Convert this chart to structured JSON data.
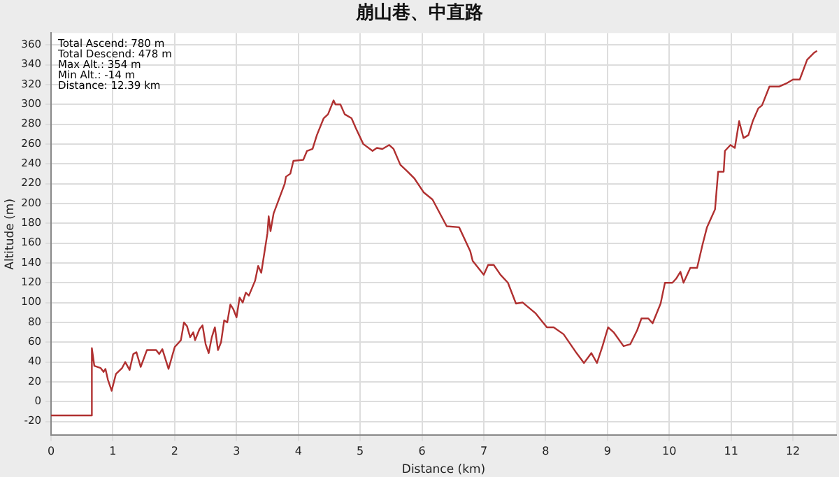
{
  "chart_data": {
    "type": "line",
    "title": "崩山巷、中直路",
    "xlabel": "Distance (km)",
    "ylabel": "Altitude (m)",
    "annotations": [
      "Total Ascend: 780 m",
      "Total Descend: 478 m",
      "Max Alt.: 354 m",
      "Min Alt.: -14 m",
      "Distance: 12.39 km"
    ],
    "xlim": [
      0,
      12.7
    ],
    "xticks": [
      0,
      1,
      2,
      3,
      4,
      5,
      6,
      7,
      8,
      9,
      10,
      11,
      12
    ],
    "ylim": [
      -34,
      372
    ],
    "yticks": [
      -20,
      0,
      20,
      40,
      60,
      80,
      100,
      120,
      140,
      160,
      180,
      200,
      220,
      240,
      260,
      280,
      300,
      320,
      340,
      360
    ],
    "grid": true,
    "marker": "none",
    "line_style": "solid",
    "series": [
      {
        "color": "#b03030",
        "x": [
          0,
          0.65,
          0.66,
          0.7,
          0.8,
          0.85,
          0.88,
          0.92,
          0.98,
          1.05,
          1.15,
          1.2,
          1.27,
          1.33,
          1.38,
          1.45,
          1.55,
          1.7,
          1.75,
          1.8,
          1.9,
          2.0,
          2.1,
          2.15,
          2.2,
          2.25,
          2.3,
          2.33,
          2.4,
          2.45,
          2.5,
          2.55,
          2.6,
          2.65,
          2.7,
          2.75,
          2.8,
          2.85,
          2.9,
          2.95,
          3.0,
          3.05,
          3.1,
          3.15,
          3.2,
          3.3,
          3.35,
          3.4,
          3.45,
          3.5,
          3.52,
          3.55,
          3.6,
          3.78,
          3.8,
          3.87,
          3.92,
          4.08,
          4.14,
          4.23,
          4.3,
          4.41,
          4.48,
          4.57,
          4.6,
          4.68,
          4.75,
          4.86,
          4.93,
          5.05,
          5.2,
          5.27,
          5.36,
          5.47,
          5.54,
          5.65,
          5.77,
          5.88,
          6.03,
          6.17,
          6.4,
          6.6,
          6.78,
          6.82,
          7.0,
          7.07,
          7.16,
          7.27,
          7.39,
          7.52,
          7.63,
          7.84,
          8.02,
          8.13,
          8.29,
          8.5,
          8.62,
          8.74,
          8.83,
          8.92,
          9.01,
          9.1,
          9.26,
          9.37,
          9.48,
          9.55,
          9.66,
          9.73,
          9.86,
          9.93,
          10.05,
          10.11,
          10.18,
          10.23,
          10.34,
          10.45,
          10.54,
          10.61,
          10.74,
          10.79,
          10.88,
          10.9,
          10.99,
          11.06,
          11.13,
          11.2,
          11.28,
          11.35,
          11.44,
          11.5,
          11.62,
          11.78,
          11.89,
          12.0,
          12.11,
          12.23,
          12.34,
          12.39
        ],
        "values": [
          -14,
          -14,
          54,
          36,
          34,
          30,
          33,
          22,
          11,
          28,
          34,
          40,
          32,
          48,
          50,
          35,
          52,
          52,
          48,
          53,
          33,
          55,
          62,
          80,
          76,
          65,
          70,
          62,
          73,
          77,
          58,
          49,
          65,
          75,
          52,
          60,
          82,
          80,
          98,
          93,
          85,
          105,
          100,
          110,
          107,
          122,
          137,
          130,
          150,
          170,
          187,
          172,
          190,
          220,
          227,
          230,
          243,
          244,
          253,
          255,
          269,
          286,
          290,
          304,
          300,
          300,
          290,
          286,
          276,
          260,
          253,
          256,
          255,
          259,
          255,
          239,
          232,
          225,
          211,
          204,
          177,
          176,
          152,
          142,
          128,
          138,
          138,
          128,
          120,
          99,
          100,
          89,
          75,
          75,
          68,
          49,
          39,
          49,
          39,
          56,
          75,
          70,
          56,
          58,
          72,
          84,
          84,
          79,
          99,
          120,
          120,
          124,
          131,
          120,
          135,
          135,
          159,
          176,
          194,
          232,
          232,
          253,
          259,
          256,
          283,
          266,
          269,
          283,
          296,
          299,
          318,
          318,
          321,
          325,
          325,
          345,
          352,
          354
        ]
      }
    ]
  }
}
